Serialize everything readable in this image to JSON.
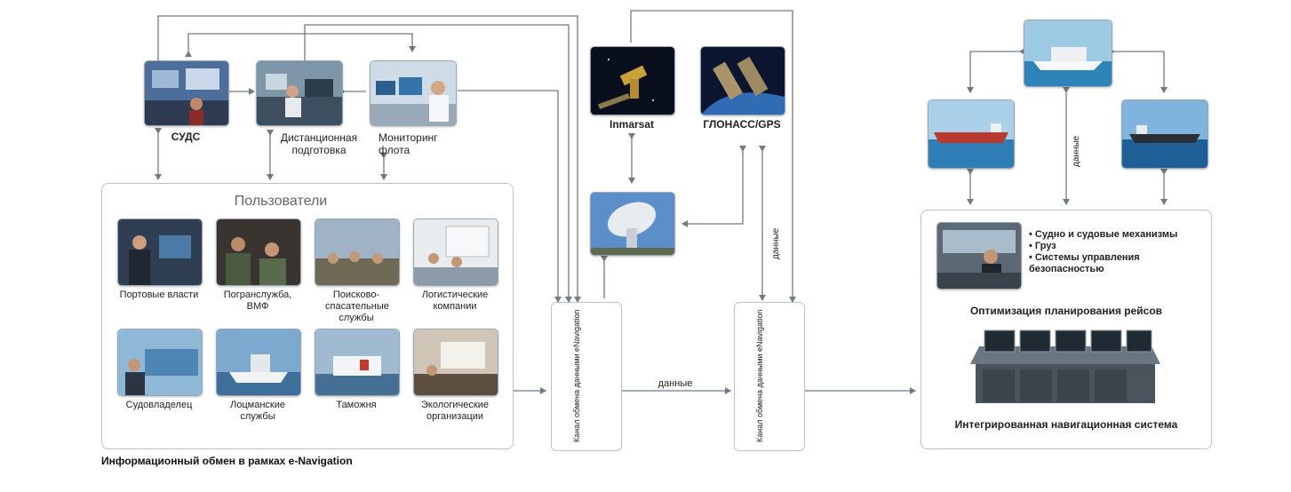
{
  "caption": "Информационный обмен в рамках e-Navigation",
  "top_nodes": {
    "sudc": "СУДС",
    "distance": "Дистанционная подготовка",
    "monitoring": "Мониторинг флота",
    "inmarsat": "Inmarsat",
    "glonass": "ГЛОНАСС/GPS"
  },
  "users": {
    "title": "Пользователи",
    "items": [
      {
        "label": "Портовые власти",
        "icon": "port-authority-photo"
      },
      {
        "label": "Погранслужба, ВМФ",
        "icon": "border-service-photo"
      },
      {
        "label": "Поисково-спасательные службы",
        "icon": "search-rescue-photo"
      },
      {
        "label": "Логистические компании",
        "icon": "logistics-photo"
      },
      {
        "label": "Судовладелец",
        "icon": "shipowner-photo"
      },
      {
        "label": "Лоцманские службы",
        "icon": "pilot-service-photo"
      },
      {
        "label": "Таможня",
        "icon": "customs-photo"
      },
      {
        "label": "Экологические организации",
        "icon": "ecology-photo"
      }
    ]
  },
  "channels": {
    "left": "Канал обмена данными eNavigation",
    "right": "Канал обмена данными eNavigation",
    "between_label": "данные",
    "vertical_label": "данные",
    "ships_label": "данные"
  },
  "ship_panel": {
    "bullets": [
      "Судно и судовые механизмы",
      "Груз",
      "Системы управления безопасностью"
    ],
    "optimization": "Оптимизация планирования рейсов",
    "ins": "Интегрированная навигационная система"
  },
  "colors": {
    "line": "#6f7a84",
    "panel_border": "#b9c2cc",
    "sea": "#2f7fb6"
  }
}
